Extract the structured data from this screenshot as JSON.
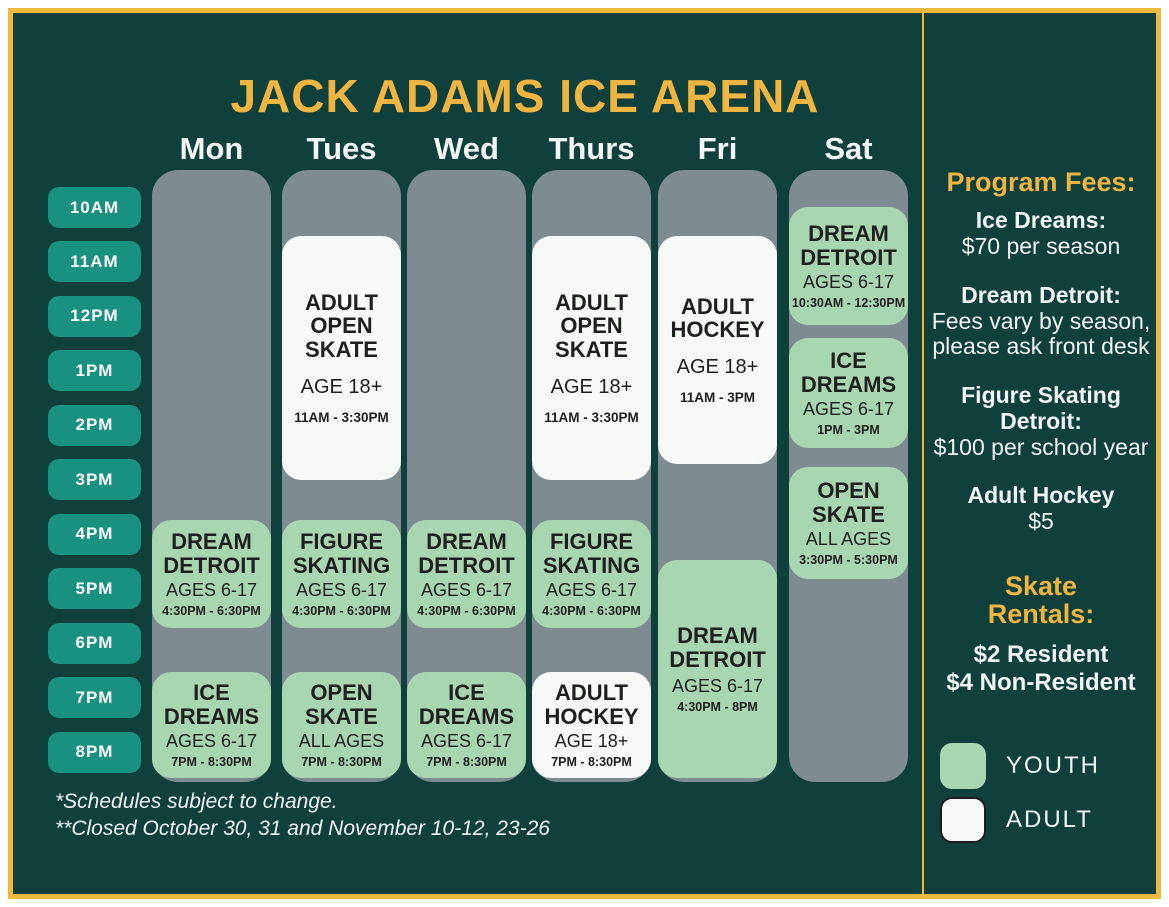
{
  "page": {
    "title": "JACK ADAMS ICE ARENA",
    "footnotes": [
      "*Schedules subject to change.",
      "**Closed October 30, 31 and November 10-12, 23-26"
    ]
  },
  "colors": {
    "background": "#0F403C",
    "accent_gold": "#F0B441",
    "border_gold": "#EFB93E",
    "track_gray": "#7E8C92",
    "youth_green": "#A8D6B1",
    "adult_white": "#F7F9F7",
    "pill_teal": "#189181",
    "block_text": "#1F1F1F"
  },
  "times": [
    "10AM",
    "11AM",
    "12PM",
    "1PM",
    "2PM",
    "3PM",
    "4PM",
    "5PM",
    "6PM",
    "7PM",
    "8PM"
  ],
  "days": [
    {
      "label": "Mon",
      "events": [
        {
          "title": "DREAM DETROIT",
          "age": "AGES 6-17",
          "time": "4:30PM - 6:30PM",
          "type": "youth"
        },
        {
          "title": "ICE DREAMS",
          "age": "AGES 6-17",
          "time": "7PM - 8:30PM",
          "type": "youth"
        }
      ]
    },
    {
      "label": "Tues",
      "events": [
        {
          "title": "ADULT OPEN SKATE",
          "age": "AGE 18+",
          "time": "11AM - 3:30PM",
          "type": "adult"
        },
        {
          "title": "FIGURE SKATING",
          "age": "AGES 6-17",
          "time": "4:30PM - 6:30PM",
          "type": "youth"
        },
        {
          "title": "OPEN SKATE",
          "age": "ALL AGES",
          "time": "7PM - 8:30PM",
          "type": "youth"
        }
      ]
    },
    {
      "label": "Wed",
      "events": [
        {
          "title": "DREAM DETROIT",
          "age": "AGES 6-17",
          "time": "4:30PM - 6:30PM",
          "type": "youth"
        },
        {
          "title": "ICE DREAMS",
          "age": "AGES 6-17",
          "time": "7PM - 8:30PM",
          "type": "youth"
        }
      ]
    },
    {
      "label": "Thurs",
      "events": [
        {
          "title": "ADULT OPEN SKATE",
          "age": "AGE 18+",
          "time": "11AM - 3:30PM",
          "type": "adult"
        },
        {
          "title": "FIGURE SKATING",
          "age": "AGES 6-17",
          "time": "4:30PM - 6:30PM",
          "type": "youth"
        },
        {
          "title": "ADULT HOCKEY",
          "age": "AGE 18+",
          "time": "7PM - 8:30PM",
          "type": "adult"
        }
      ]
    },
    {
      "label": "Fri",
      "events": [
        {
          "title": "ADULT HOCKEY",
          "age": "AGE 18+",
          "time": "11AM - 3PM",
          "type": "adult"
        },
        {
          "title": "DREAM DETROIT",
          "age": "AGES 6-17",
          "time": "4:30PM - 8PM",
          "type": "youth"
        }
      ]
    },
    {
      "label": "Sat",
      "events": [
        {
          "title": "DREAM DETROIT",
          "age": "AGES 6-17",
          "time": "10:30AM - 12:30PM",
          "type": "youth"
        },
        {
          "title": "ICE DREAMS",
          "age": "AGES 6-17",
          "time": "1PM - 3PM",
          "type": "youth"
        },
        {
          "title": "OPEN SKATE",
          "age": "ALL AGES",
          "time": "3:30PM - 5:30PM",
          "type": "youth"
        }
      ]
    }
  ],
  "sidebar": {
    "program_fees_heading": "Program Fees:",
    "fees": [
      {
        "name": "Ice Dreams:",
        "detail": "$70 per season"
      },
      {
        "name": "Dream Detroit:",
        "detail": "Fees vary by season, please ask front desk"
      },
      {
        "name": "Figure Skating Detroit:",
        "detail": "$100 per school year"
      },
      {
        "name": "Adult Hockey",
        "detail": "$5"
      }
    ],
    "skate_rentals_heading": "Skate Rentals:",
    "skate_rentals": [
      "$2 Resident",
      "$4 Non-Resident"
    ],
    "legend": [
      {
        "label": "YOUTH",
        "type": "youth"
      },
      {
        "label": "ADULT",
        "type": "adult"
      }
    ]
  }
}
